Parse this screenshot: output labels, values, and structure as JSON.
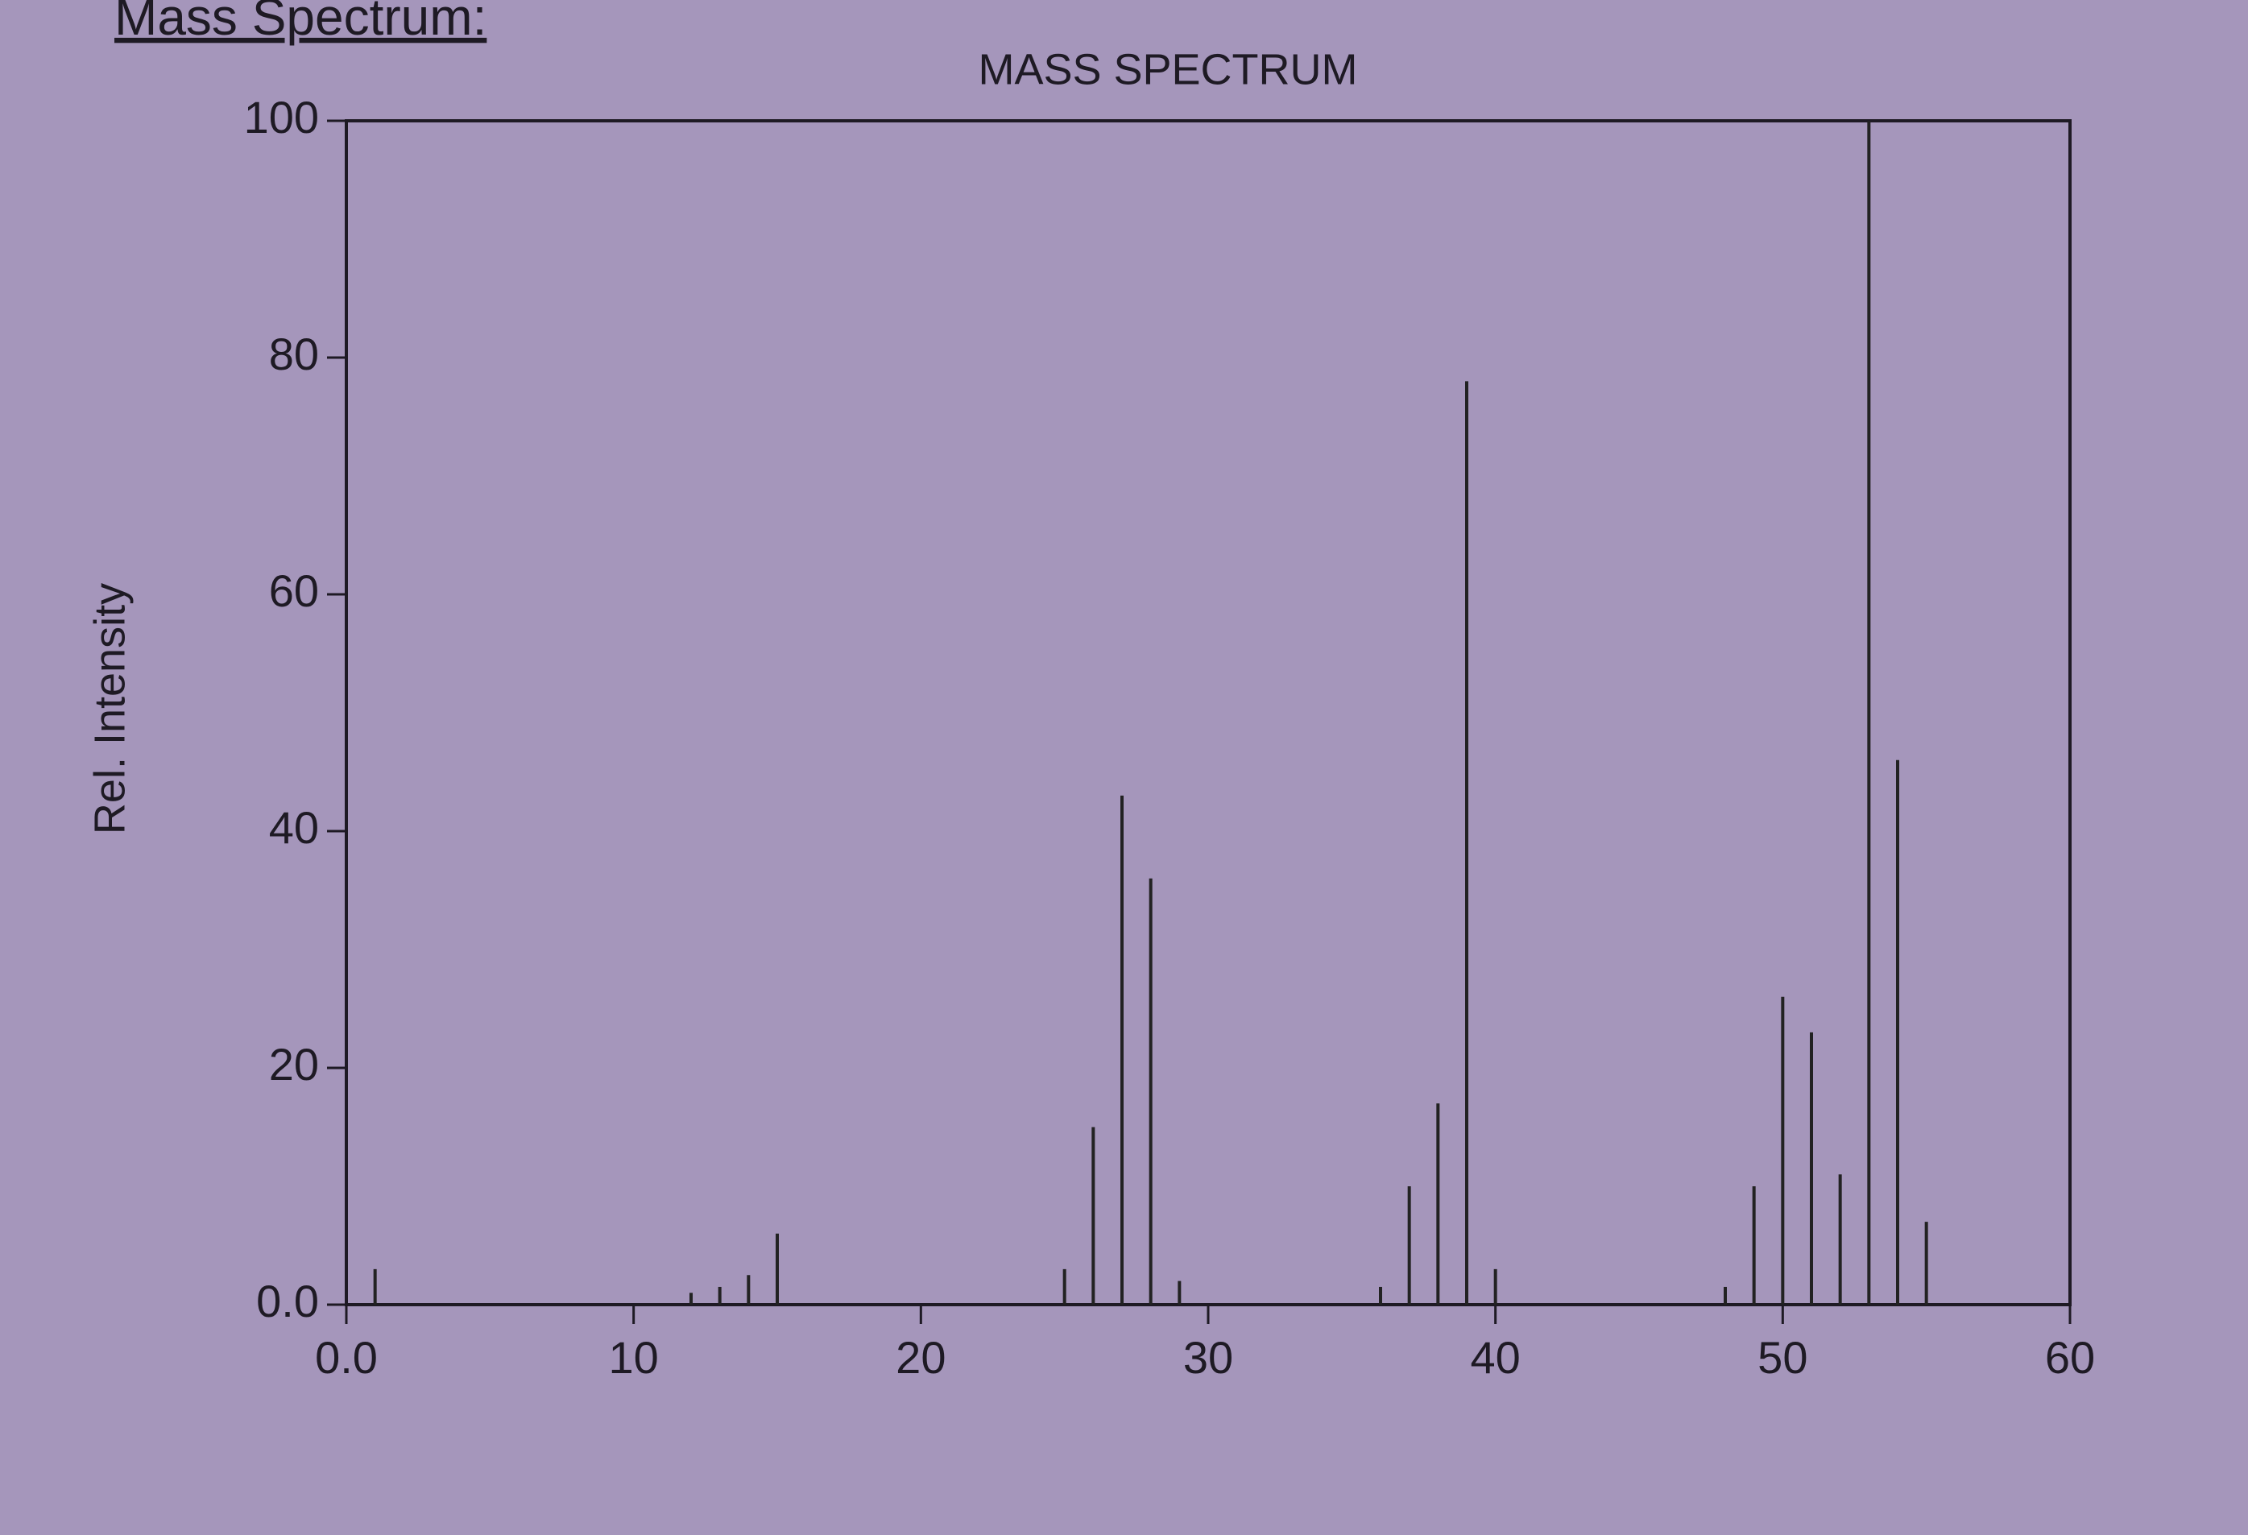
{
  "heading": "Mass Spectrum:",
  "chart_data": {
    "type": "stick",
    "title": "MASS SPECTRUM",
    "y_label": "Rel. Intensity",
    "x": [
      1,
      12,
      13,
      14,
      15,
      25,
      26,
      27,
      28,
      29,
      36,
      37,
      38,
      39,
      40,
      48,
      49,
      50,
      51,
      52,
      53,
      54,
      55
    ],
    "values": [
      3,
      1,
      1.5,
      2.5,
      6,
      3,
      15,
      43,
      36,
      2,
      1.5,
      10,
      17,
      78,
      3,
      1.5,
      10,
      26,
      23,
      11,
      100,
      46,
      7
    ],
    "color": "#222222",
    "xlim": [
      0,
      60
    ],
    "xticks": [
      {
        "value": 0,
        "label": "0.0"
      },
      10,
      20,
      30,
      40,
      50,
      60
    ],
    "ylim": [
      0,
      100
    ],
    "yticks": [
      {
        "value": 0,
        "label": "0.0"
      },
      20,
      40,
      60,
      80,
      100
    ],
    "grid": false
  }
}
